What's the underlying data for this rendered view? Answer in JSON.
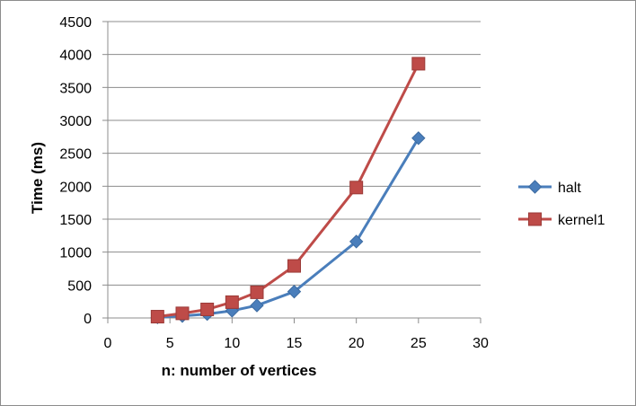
{
  "chart_data": {
    "type": "line",
    "title": "",
    "xlabel": "n: number of vertices",
    "ylabel": "Time (ms)",
    "xlim": [
      0,
      30
    ],
    "ylim": [
      0,
      4500
    ],
    "xticks": [
      0,
      5,
      10,
      15,
      20,
      25,
      30
    ],
    "yticks": [
      0,
      500,
      1000,
      1500,
      2000,
      2500,
      3000,
      3500,
      4000,
      4500
    ],
    "grid": "horizontal",
    "legend_position": "right",
    "series": [
      {
        "name": "halt",
        "color": "#4a7ebb",
        "marker": "diamond",
        "x": [
          4,
          6,
          8,
          10,
          12,
          15,
          20,
          25
        ],
        "y": [
          10,
          30,
          60,
          110,
          190,
          400,
          1160,
          2730
        ]
      },
      {
        "name": "kernel1",
        "color": "#be4b48",
        "marker": "square",
        "x": [
          4,
          6,
          8,
          10,
          12,
          15,
          20,
          25
        ],
        "y": [
          20,
          70,
          130,
          240,
          390,
          790,
          1980,
          3860
        ]
      }
    ]
  }
}
